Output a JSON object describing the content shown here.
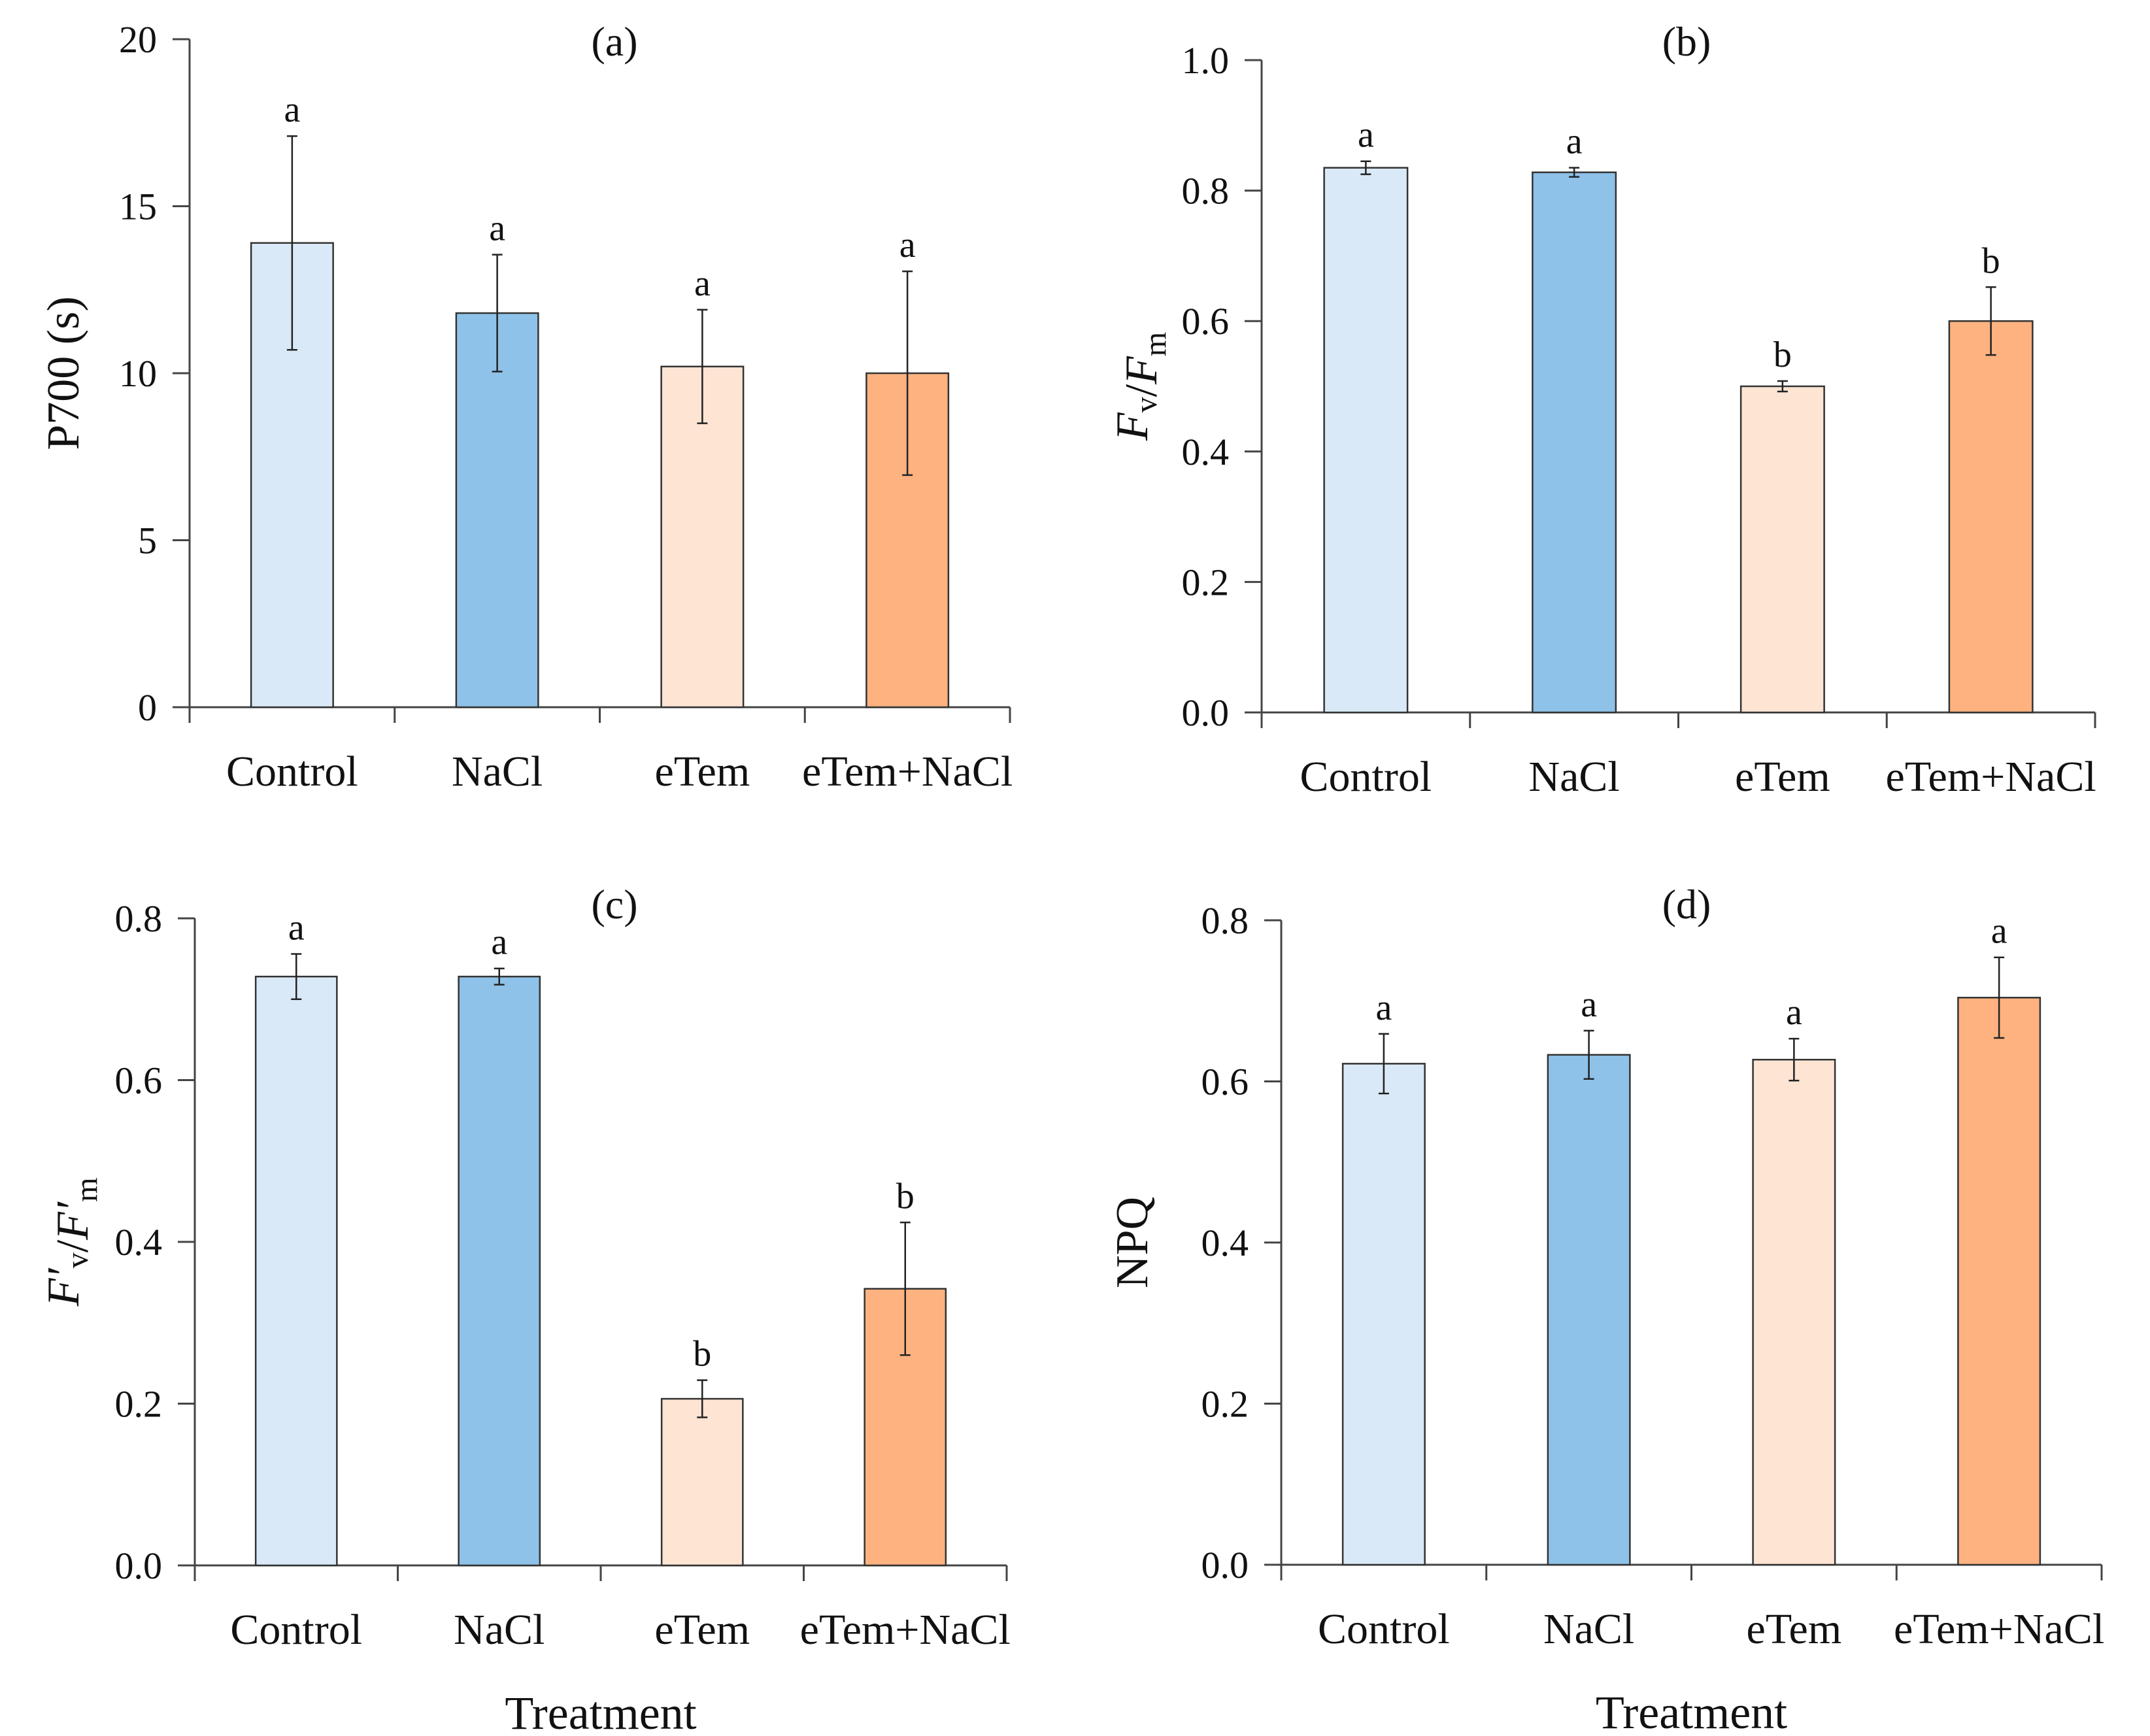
{
  "colors": {
    "Control": "#dae9f7",
    "NaCl": "#8ec2e8",
    "eTem": "#fde4d3",
    "eTem+NaCl": "#fdb280",
    "bar_stroke": "#333333",
    "axis": "#444444"
  },
  "chart_data": [
    {
      "type": "bar",
      "panel_label": "(a)",
      "ylabel": "P700 (s)",
      "xlabel": "",
      "categories": [
        "Control",
        "NaCl",
        "eTem",
        "eTem+NaCl"
      ],
      "values": [
        13.9,
        11.8,
        10.2,
        10.0
      ],
      "errors": [
        3.2,
        1.75,
        1.7,
        3.05
      ],
      "significance": [
        "a",
        "a",
        "a",
        "a"
      ],
      "ylim": [
        0,
        20
      ],
      "yticks": [
        "0",
        "5",
        "10",
        "15",
        "20"
      ],
      "grid": false,
      "legend": "none"
    },
    {
      "type": "bar",
      "panel_label": "(b)",
      "ylabel": "Fv/Fm",
      "xlabel": "",
      "categories": [
        "Control",
        "NaCl",
        "eTem",
        "eTem+NaCl"
      ],
      "values": [
        0.835,
        0.828,
        0.5,
        0.6
      ],
      "errors": [
        0.01,
        0.007,
        0.008,
        0.052
      ],
      "significance": [
        "a",
        "a",
        "b",
        "b"
      ],
      "ylim": [
        0,
        1.0
      ],
      "yticks": [
        "0.0",
        "0.2",
        "0.4",
        "0.6",
        "0.8",
        "1.0"
      ],
      "grid": false,
      "legend": "none"
    },
    {
      "type": "bar",
      "panel_label": "(c)",
      "ylabel": "F′v/F′m",
      "xlabel": "Treatment",
      "categories": [
        "Control",
        "NaCl",
        "eTem",
        "eTem+NaCl"
      ],
      "values": [
        0.728,
        0.728,
        0.206,
        0.342
      ],
      "errors": [
        0.028,
        0.01,
        0.023,
        0.082
      ],
      "significance": [
        "a",
        "a",
        "b",
        "b"
      ],
      "ylim": [
        0,
        0.8
      ],
      "yticks": [
        "0.0",
        "0.2",
        "0.4",
        "0.6",
        "0.8"
      ],
      "grid": false,
      "legend": "none"
    },
    {
      "type": "bar",
      "panel_label": "(d)",
      "ylabel": "NPQ",
      "xlabel": "Treatment",
      "categories": [
        "Control",
        "NaCl",
        "eTem",
        "eTem+NaCl"
      ],
      "values": [
        0.622,
        0.633,
        0.627,
        0.704
      ],
      "errors": [
        0.037,
        0.03,
        0.026,
        0.05
      ],
      "significance": [
        "a",
        "a",
        "a",
        "a"
      ],
      "ylim": [
        0,
        0.8
      ],
      "yticks": [
        "0.0",
        "0.2",
        "0.4",
        "0.6",
        "0.8"
      ],
      "grid": false,
      "legend": "none"
    }
  ]
}
